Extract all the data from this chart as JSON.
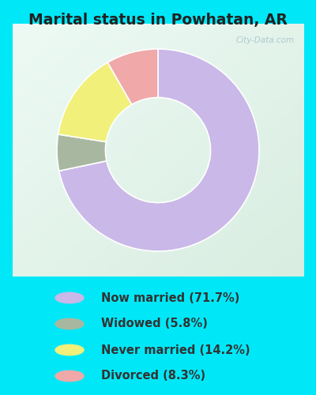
{
  "title": "Marital status in Powhatan, AR",
  "slices": [
    71.7,
    5.8,
    14.2,
    8.3
  ],
  "labels": [
    "Now married (71.7%)",
    "Widowed (5.8%)",
    "Never married (14.2%)",
    "Divorced (8.3%)"
  ],
  "colors": [
    "#c9b8e8",
    "#a8b8a0",
    "#f0f07a",
    "#f0a8a8"
  ],
  "bg_color_outer": "#00e8f8",
  "bg_color_inner_tl": "#d8ece0",
  "bg_color_inner_br": "#e8f8f0",
  "watermark": "City-Data.com",
  "start_angle": 90,
  "donut_width": 0.48,
  "title_color": "#222222",
  "legend_text_color": "#333333"
}
